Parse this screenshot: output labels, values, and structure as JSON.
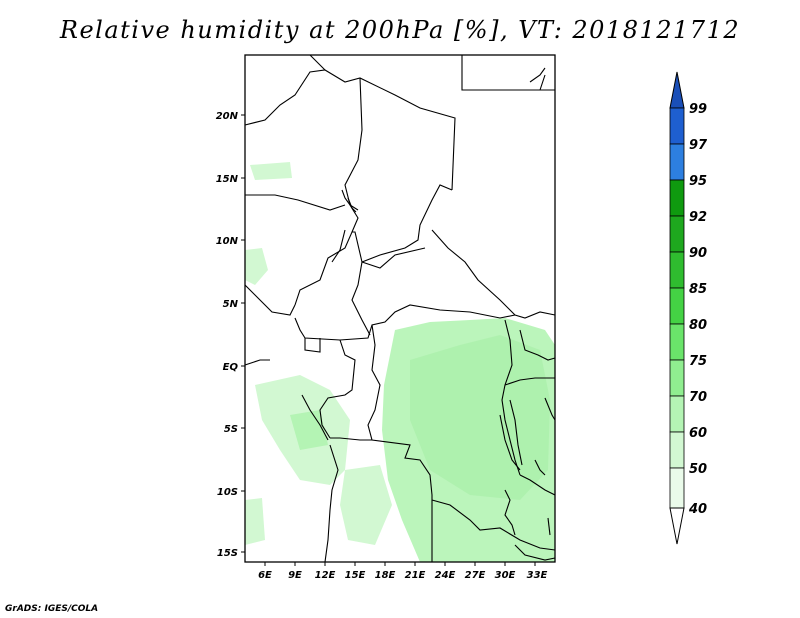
{
  "title": "Relative humidity at 200hPa [%], VT: 2018121712",
  "footer": "GrADS: IGES/COLA",
  "map": {
    "region": "Central Africa",
    "lon_range": [
      3,
      34
    ],
    "lat_range": [
      -16,
      24
    ],
    "x_ticks": [
      "6E",
      "9E",
      "12E",
      "15E",
      "18E",
      "21E",
      "24E",
      "27E",
      "30E",
      "33E"
    ],
    "y_ticks": [
      "20N",
      "15N",
      "10N",
      "5N",
      "EQ",
      "5S",
      "10S",
      "15S"
    ]
  },
  "colorbar": {
    "levels": [
      "99",
      "97",
      "95",
      "92",
      "90",
      "85",
      "80",
      "75",
      "70",
      "60",
      "50",
      "40"
    ],
    "colors": [
      "#1e5fd0",
      "#2d7fe0",
      "#46a0f0",
      "#0f9a0f",
      "#1ea81e",
      "#2fbc2f",
      "#44d244",
      "#6ae46a",
      "#90ee90",
      "#b4f4b4",
      "#d2f8d2",
      "#eafbea",
      "#f6fff6"
    ],
    "top_arrow_color": "#1a4fb8",
    "bottom_arrow_color": "#ffffff"
  }
}
